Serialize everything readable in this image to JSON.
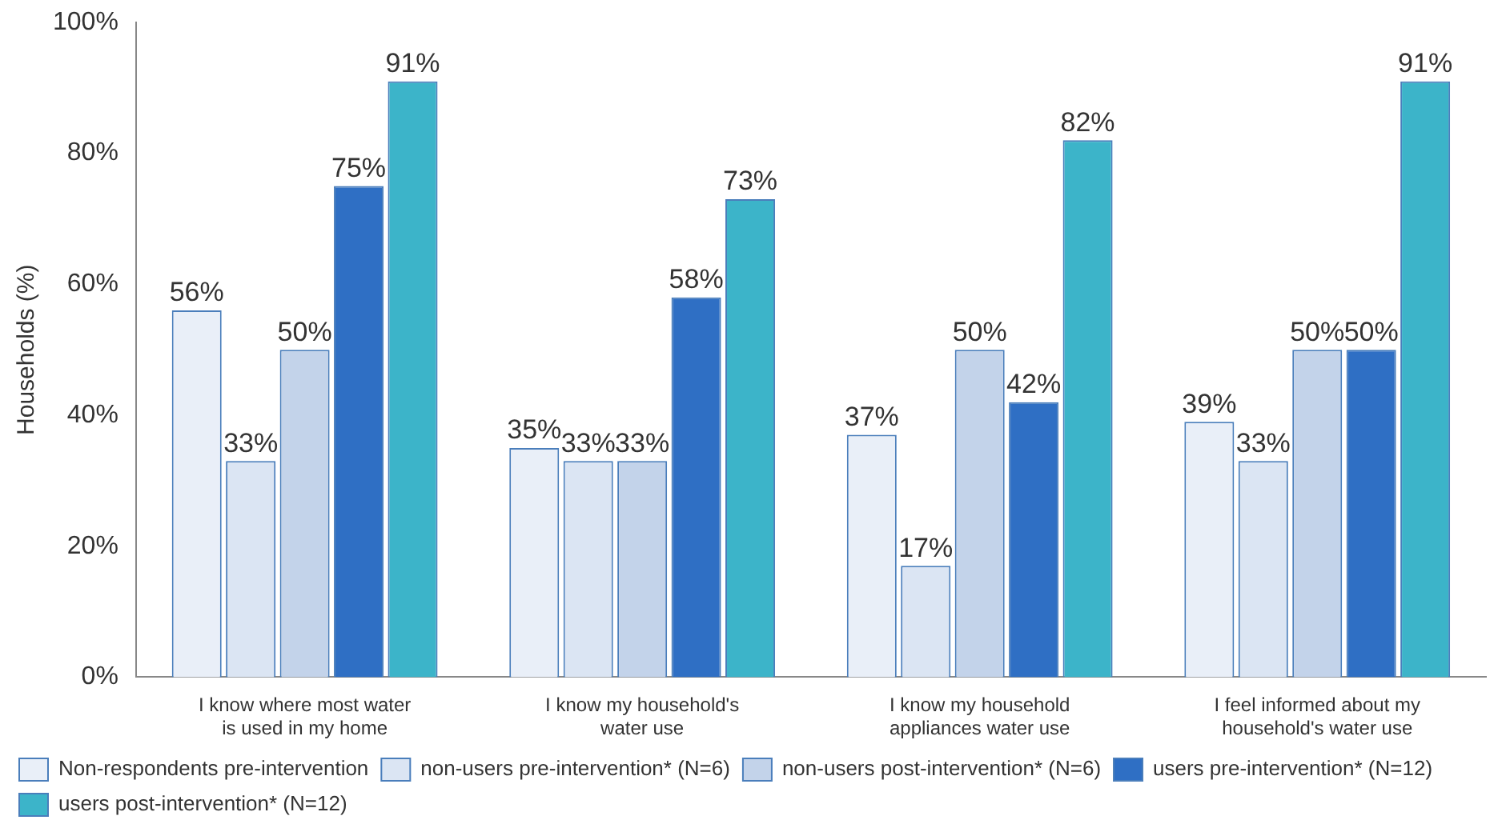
{
  "chart_data": {
    "type": "bar",
    "ylabel": "Households (%)",
    "categories": [
      "I know where most water is used in my home",
      "I know my household's water use",
      "I know my household appliances water use",
      "I feel informed about my household's water use"
    ],
    "series": [
      {
        "name": "Non-respondents pre-intervention",
        "color": "#e9eff8",
        "values": [
          56,
          35,
          37,
          39
        ],
        "value_labels": [
          "56%",
          "35%",
          "37%",
          "39%"
        ]
      },
      {
        "name": "non-users pre-intervention* (N=6)",
        "color": "#dbe5f3",
        "values": [
          33,
          33,
          17,
          33
        ],
        "value_labels": [
          "33%",
          "33%",
          "17%",
          "33%"
        ]
      },
      {
        "name": "non-users post-intervention* (N=6)",
        "color": "#c3d3ea",
        "values": [
          50,
          33,
          50,
          50
        ],
        "value_labels": [
          "50%",
          "33%",
          "50%",
          "50%"
        ]
      },
      {
        "name": "users pre-intervention* (N=12)",
        "color": "#2f6fc4",
        "values": [
          75,
          58,
          42,
          50
        ],
        "value_labels": [
          "75%",
          "58%",
          "42%",
          "50%"
        ]
      },
      {
        "name": "users post-intervention* (N=12)",
        "color": "#3cb4c9",
        "values": [
          91,
          73,
          82,
          91
        ],
        "value_labels": [
          "91%",
          "73%",
          "82%",
          "91%"
        ]
      }
    ],
    "ylim": [
      0,
      100
    ],
    "yticks": [
      {
        "value": 0,
        "label": "0%"
      },
      {
        "value": 20,
        "label": "20%"
      },
      {
        "value": 40,
        "label": "40%"
      },
      {
        "value": 60,
        "label": "60%"
      },
      {
        "value": 80,
        "label": "80%"
      },
      {
        "value": 100,
        "label": "100%"
      }
    ],
    "grid": false,
    "legend": "bottom"
  }
}
